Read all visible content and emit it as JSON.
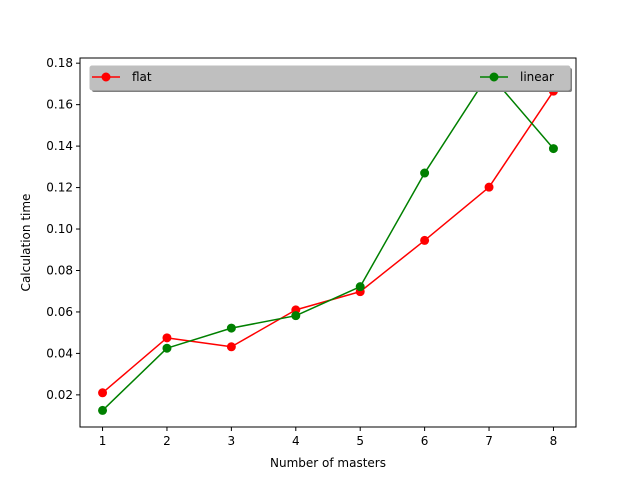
{
  "chart_data": {
    "type": "line",
    "title": "",
    "xlabel": "Number of masters",
    "ylabel": "Calculation time",
    "x": [
      1,
      2,
      3,
      4,
      5,
      6,
      7,
      8
    ],
    "xlim": [
      0.65,
      8.35
    ],
    "ylim": [
      0.0045,
      0.1825
    ],
    "xticks": [
      1,
      2,
      3,
      4,
      5,
      6,
      7,
      8
    ],
    "yticks": [
      0.02,
      0.04,
      0.06,
      0.08,
      0.1,
      0.12,
      0.14,
      0.16,
      0.18
    ],
    "ytick_labels": [
      "0.02",
      "0.04",
      "0.06",
      "0.08",
      "0.10",
      "0.12",
      "0.14",
      "0.16",
      "0.18"
    ],
    "grid": false,
    "legend": {
      "placement": "top",
      "ncol": 2,
      "shadow": true,
      "background": "#bfbfbf"
    },
    "series": [
      {
        "name": "flat",
        "color": "#ff0000",
        "marker": "circle",
        "values": [
          0.021,
          0.0475,
          0.0432,
          0.061,
          0.0698,
          0.0945,
          0.1202,
          0.1665
        ]
      },
      {
        "name": "linear",
        "color": "#008000",
        "marker": "circle",
        "values": [
          0.0125,
          0.0425,
          0.0522,
          0.0582,
          0.0722,
          0.127,
          0.175,
          0.1388
        ]
      }
    ]
  }
}
